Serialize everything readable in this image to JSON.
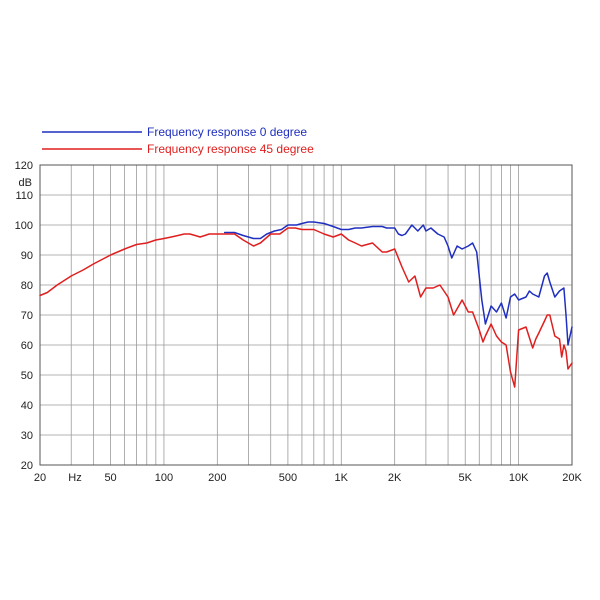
{
  "chart_data": {
    "type": "line",
    "title": "",
    "xlabel": "",
    "ylabel": "dB",
    "x_unit_label": "Hz",
    "x_scale": "log",
    "xlim": [
      20,
      20000
    ],
    "ylim": [
      20,
      120
    ],
    "grid": true,
    "legend_position": "top-left",
    "x_ticks": [
      20,
      50,
      100,
      200,
      500,
      1000,
      2000,
      5000,
      10000,
      20000
    ],
    "x_tick_labels": [
      "20",
      "50",
      "100",
      "200",
      "500",
      "1K",
      "2K",
      "5K",
      "10K",
      "20K"
    ],
    "y_ticks": [
      20,
      30,
      40,
      50,
      60,
      70,
      80,
      90,
      100,
      110,
      120
    ],
    "y_tick_labels": [
      "20",
      "30",
      "40",
      "50",
      "60",
      "70",
      "80",
      "90",
      "100",
      "110",
      "120"
    ],
    "series": [
      {
        "name": "Frequency response 0 degree",
        "color": "#1f2fbf",
        "x": [
          220,
          250,
          280,
          320,
          350,
          380,
          420,
          460,
          500,
          560,
          600,
          650,
          700,
          800,
          900,
          1000,
          1100,
          1200,
          1300,
          1500,
          1600,
          1700,
          1800,
          2000,
          2100,
          2200,
          2300,
          2500,
          2700,
          2900,
          3000,
          3200,
          3500,
          3800,
          4000,
          4200,
          4500,
          4800,
          5200,
          5500,
          5800,
          6200,
          6500,
          7000,
          7500,
          8000,
          8500,
          9000,
          9500,
          10000,
          11000,
          11500,
          12000,
          13000,
          14000,
          14500,
          15000,
          16000,
          17000,
          18000,
          18500,
          19000,
          20000
        ],
        "y": [
          97.5,
          97.5,
          96.5,
          95.5,
          95.5,
          97,
          98,
          98.5,
          100,
          100,
          100.5,
          101,
          101,
          100.5,
          99.5,
          98.5,
          98.5,
          99,
          99,
          99.5,
          99.5,
          99.5,
          99,
          99,
          97,
          96.5,
          97,
          100,
          98,
          100,
          98,
          99,
          97,
          96,
          93,
          89,
          93,
          92,
          93,
          94,
          91,
          75,
          67,
          73,
          71,
          74,
          69,
          76,
          77,
          75,
          76,
          78,
          77,
          76,
          83,
          84,
          81,
          76,
          78,
          79,
          70,
          60,
          66
        ]
      },
      {
        "name": "Frequency response 45 degree",
        "color": "#e01e1e",
        "x": [
          20,
          22,
          25,
          30,
          35,
          40,
          50,
          60,
          70,
          80,
          90,
          100,
          110,
          120,
          130,
          140,
          150,
          160,
          170,
          180,
          200,
          220,
          250,
          280,
          320,
          350,
          400,
          450,
          500,
          550,
          600,
          700,
          800,
          900,
          1000,
          1100,
          1200,
          1300,
          1500,
          1700,
          1800,
          2000,
          2200,
          2400,
          2600,
          2800,
          3000,
          3300,
          3600,
          4000,
          4300,
          4800,
          5200,
          5500,
          6000,
          6300,
          6500,
          7000,
          7500,
          8000,
          8500,
          9000,
          9500,
          10000,
          11000,
          12000,
          12500,
          13000,
          14000,
          14500,
          15000,
          16000,
          17000,
          17500,
          18000,
          18500,
          19000,
          20000
        ],
        "y": [
          76.5,
          77.5,
          80,
          83,
          85,
          87,
          90,
          92,
          93.5,
          94,
          95,
          95.5,
          96,
          96.5,
          97,
          97,
          96.5,
          96,
          96.5,
          97,
          97,
          97,
          97,
          95,
          93,
          94,
          97,
          97,
          99,
          99,
          98.5,
          98.5,
          97,
          96,
          97,
          95,
          94,
          93,
          94,
          91,
          91,
          92,
          86,
          81,
          83,
          76,
          79,
          79,
          80,
          76,
          70,
          75,
          71,
          71,
          65,
          61,
          63,
          67,
          63,
          61,
          60,
          51,
          46,
          65,
          66,
          59,
          62,
          64,
          68,
          70,
          70,
          63,
          62,
          56,
          60,
          58,
          52,
          54
        ]
      }
    ]
  }
}
